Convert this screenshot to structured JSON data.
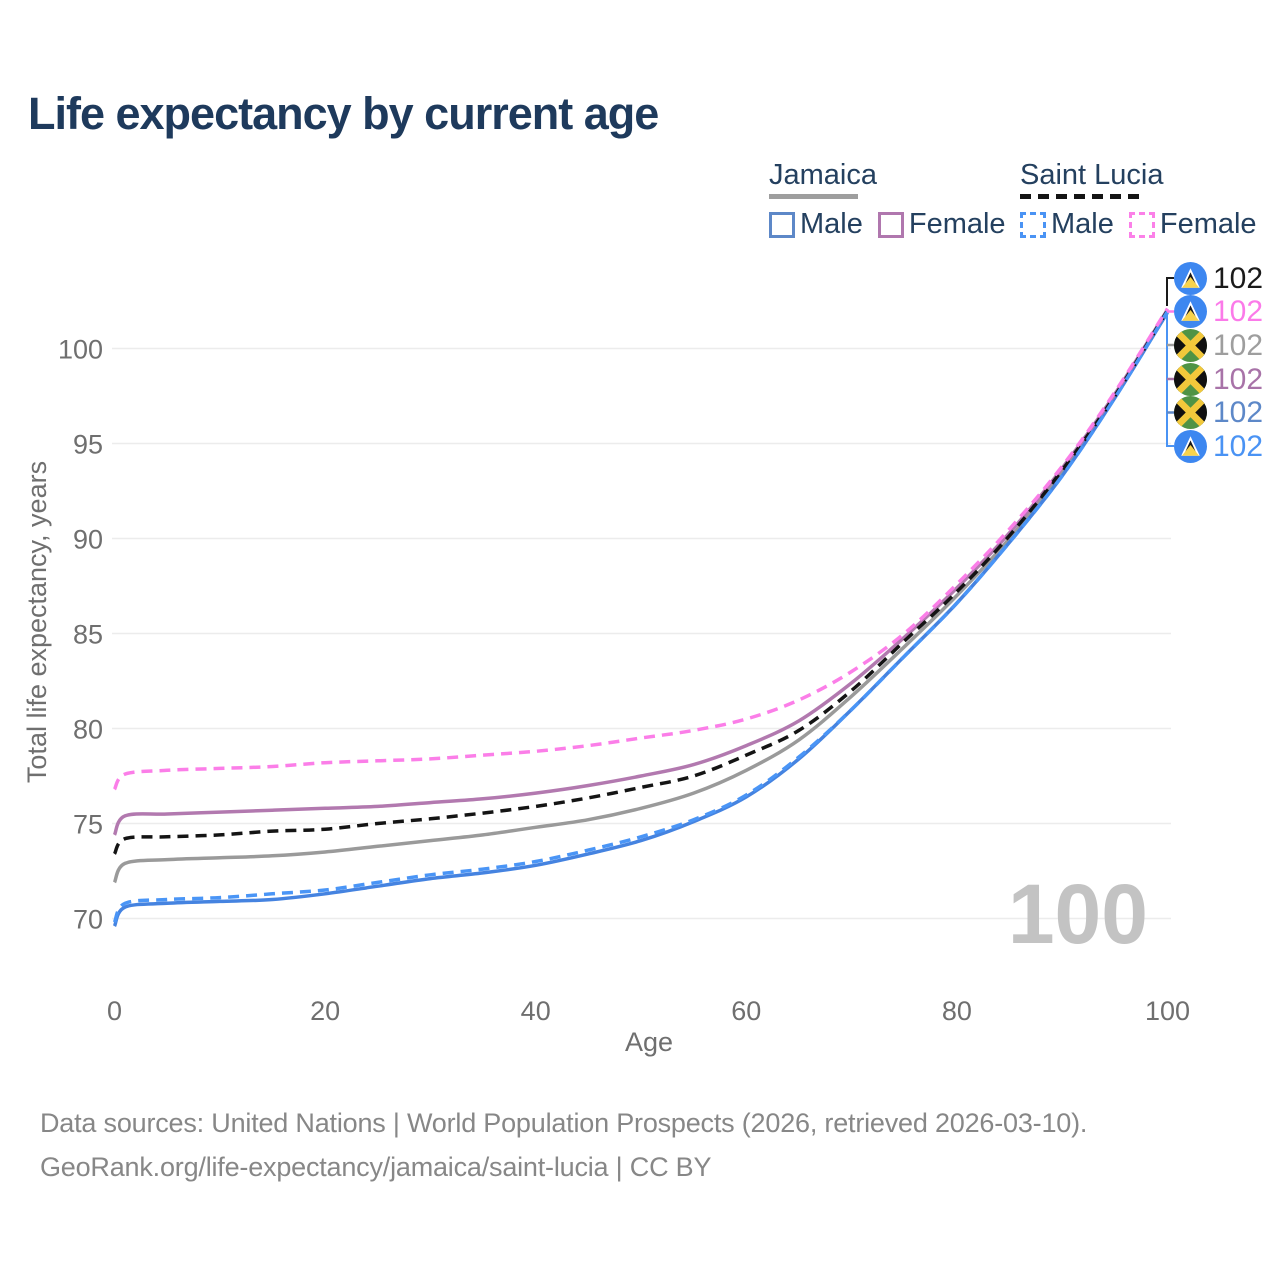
{
  "title": "Life expectancy by current age",
  "watermark": "100",
  "legend": {
    "groups": [
      {
        "country": "Jamaica",
        "line_style": "solid",
        "underline_color": "#9e9e9e",
        "items": [
          {
            "label": "Male",
            "color": "#5d88c8",
            "dashed": false
          },
          {
            "label": "Female",
            "color": "#b077ae",
            "dashed": false
          }
        ]
      },
      {
        "country": "Saint Lucia",
        "line_style": "dashed",
        "underline_color": "#141414",
        "items": [
          {
            "label": "Male",
            "color": "#4a93f4",
            "dashed": true
          },
          {
            "label": "Female",
            "color": "#fb80e8",
            "dashed": true
          }
        ]
      }
    ]
  },
  "end_labels": [
    {
      "flag": "saint-lucia",
      "value": "102",
      "color": "#1a1a1a",
      "series": "Saint Lucia total"
    },
    {
      "flag": "saint-lucia",
      "value": "102",
      "color": "#fb7ae9",
      "series": "Saint Lucia female"
    },
    {
      "flag": "jamaica",
      "value": "102",
      "color": "#9e9e9e",
      "series": "Jamaica total"
    },
    {
      "flag": "jamaica",
      "value": "102",
      "color": "#a873a8",
      "series": "Jamaica female"
    },
    {
      "flag": "jamaica",
      "value": "102",
      "color": "#5d88c8",
      "series": "Jamaica male"
    },
    {
      "flag": "saint-lucia",
      "value": "102",
      "color": "#4a93f4",
      "series": "Saint Lucia male"
    }
  ],
  "chart_data": {
    "type": "line",
    "title": "Life expectancy by current age",
    "xlabel": "Age",
    "ylabel": "Total life expectancy, years",
    "x_range": [
      0,
      100
    ],
    "y_range": [
      68.5,
      103
    ],
    "xticks": [
      0,
      20,
      40,
      60,
      80,
      100
    ],
    "yticks": [
      70,
      75,
      80,
      85,
      90,
      95,
      100
    ],
    "grid": "horizontal-only",
    "legend_position": "top-right",
    "ages": [
      0,
      1,
      5,
      10,
      15,
      20,
      25,
      30,
      35,
      40,
      45,
      50,
      55,
      60,
      65,
      70,
      75,
      80,
      85,
      90,
      95,
      100
    ],
    "series": [
      {
        "name": "Jamaica total",
        "country": "Jamaica",
        "sex": "both",
        "color": "#9a9a9a",
        "dashed": false,
        "values": [
          71.9,
          72.9,
          73.1,
          73.2,
          73.3,
          73.5,
          73.8,
          74.1,
          74.4,
          74.8,
          75.2,
          75.8,
          76.6,
          77.8,
          79.4,
          81.7,
          84.3,
          87.0,
          90.0,
          93.5,
          97.5,
          102.0
        ]
      },
      {
        "name": "Jamaica male",
        "country": "Jamaica",
        "sex": "male",
        "color": "#4583e0",
        "dashed": false,
        "values": [
          69.6,
          70.6,
          70.8,
          70.9,
          71.0,
          71.3,
          71.7,
          72.1,
          72.4,
          72.8,
          73.4,
          74.1,
          75.1,
          76.4,
          78.4,
          81.0,
          83.8,
          86.6,
          89.8,
          93.3,
          97.4,
          101.9
        ]
      },
      {
        "name": "Jamaica female",
        "country": "Jamaica",
        "sex": "female",
        "color": "#b279af",
        "dashed": false,
        "values": [
          74.4,
          75.4,
          75.5,
          75.6,
          75.7,
          75.8,
          75.9,
          76.1,
          76.3,
          76.6,
          77.0,
          77.5,
          78.1,
          79.1,
          80.4,
          82.4,
          84.8,
          87.4,
          90.3,
          93.7,
          97.6,
          102.05
        ]
      },
      {
        "name": "Saint Lucia total",
        "country": "Saint Lucia",
        "sex": "both",
        "color": "#141414",
        "dashed": true,
        "values": [
          73.4,
          74.2,
          74.3,
          74.4,
          74.6,
          74.7,
          75.0,
          75.25,
          75.55,
          75.9,
          76.35,
          76.9,
          77.5,
          78.6,
          79.9,
          82.0,
          84.6,
          87.2,
          90.15,
          93.6,
          97.5,
          102.0
        ]
      },
      {
        "name": "Saint Lucia male",
        "country": "Saint Lucia",
        "sex": "male",
        "color": "#4a95f6",
        "dashed": true,
        "values": [
          69.8,
          70.8,
          71.0,
          71.1,
          71.3,
          71.5,
          71.9,
          72.3,
          72.6,
          73.0,
          73.6,
          74.3,
          75.2,
          76.5,
          78.5,
          81.0,
          83.8,
          86.6,
          89.8,
          93.3,
          97.4,
          101.95
        ]
      },
      {
        "name": "Saint Lucia female",
        "country": "Saint Lucia",
        "sex": "female",
        "color": "#fb7ee8",
        "dashed": true,
        "values": [
          76.8,
          77.6,
          77.8,
          77.9,
          78.0,
          78.2,
          78.3,
          78.4,
          78.6,
          78.8,
          79.1,
          79.5,
          79.9,
          80.5,
          81.5,
          83.0,
          85.0,
          87.6,
          90.5,
          93.8,
          97.7,
          102.1
        ]
      }
    ]
  },
  "footer": {
    "line1": "Data sources: United Nations | World Population Prospects (2026, retrieved 2026-03-10).",
    "line2": "GeoRank.org/life-expectancy/jamaica/saint-lucia | CC BY"
  }
}
